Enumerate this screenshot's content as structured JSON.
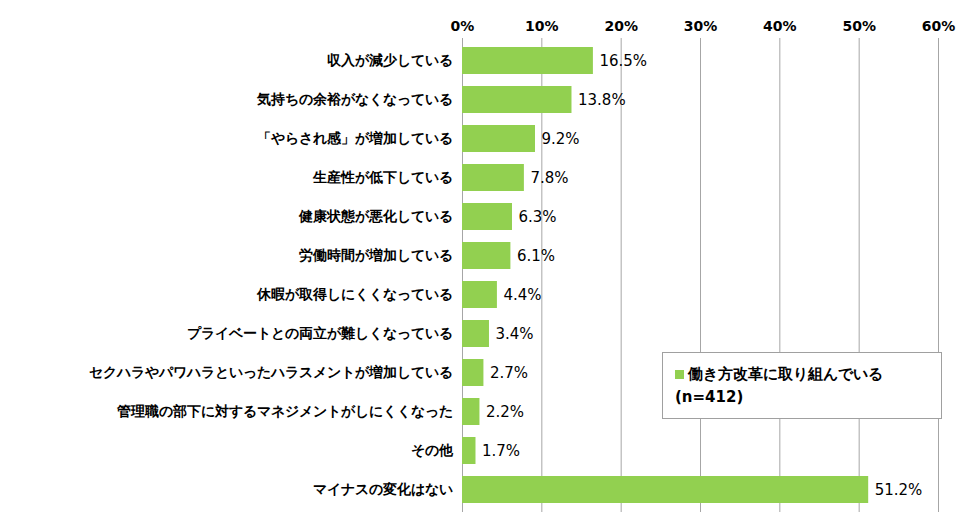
{
  "chart_data": {
    "type": "bar",
    "orientation": "horizontal",
    "categories": [
      "収入が減少している",
      "気持ちの余裕がなくなっている",
      "「やらされ感」が増加している",
      "生産性が低下している",
      "健康状態が悪化している",
      "労働時間が増加している",
      "休暇が取得しにくくなっている",
      "プライベートとの両立が難しくなっている",
      "セクハラやパワハラといったハラスメントが増加している",
      "管理職の部下に対するマネジメントがしにくくなった",
      "その他",
      "マイナスの変化はない"
    ],
    "series": [
      {
        "name": "働き方改革に取り組んでいる\n(n=412)",
        "color": "#92d050",
        "values": [
          16.5,
          13.8,
          9.2,
          7.8,
          6.3,
          6.1,
          4.4,
          3.4,
          2.7,
          2.2,
          1.7,
          51.2
        ],
        "value_labels": [
          "16.5%",
          "13.8%",
          "9.2%",
          "7.8%",
          "6.3%",
          "6.1%",
          "4.4%",
          "3.4%",
          "2.7%",
          "2.2%",
          "1.7%",
          "51.2%"
        ]
      }
    ],
    "xlim": [
      0,
      60
    ],
    "xticks": [
      {
        "value": 0,
        "label": "0%"
      },
      {
        "value": 10,
        "label": "10%"
      },
      {
        "value": 20,
        "label": "20%"
      },
      {
        "value": 30,
        "label": "30%"
      },
      {
        "value": 40,
        "label": "40%"
      },
      {
        "value": 50,
        "label": "50%"
      },
      {
        "value": 60,
        "label": "60%"
      }
    ],
    "grid": true,
    "data_labels": true,
    "legend": "bottom-right"
  }
}
